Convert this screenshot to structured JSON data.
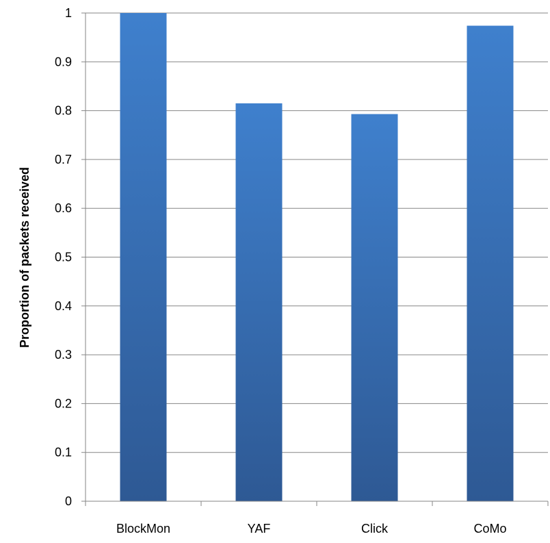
{
  "chart_data": {
    "type": "bar",
    "categories": [
      "BlockMon",
      "YAF",
      "Click",
      "CoMo"
    ],
    "values": [
      1.0,
      0.815,
      0.793,
      0.974
    ],
    "title": "",
    "xlabel": "",
    "ylabel": "Proportion of packets received",
    "ylim": [
      0,
      1
    ],
    "yticks": [
      "0",
      "0.1",
      "0.2",
      "0.3",
      "0.4",
      "0.5",
      "0.6",
      "0.7",
      "0.8",
      "0.9",
      "1"
    ],
    "grid": true,
    "legend": "none",
    "colors": {
      "bar_light": "#3f80cd",
      "bar_dark": "#2e5994",
      "grid": "#868686"
    }
  }
}
